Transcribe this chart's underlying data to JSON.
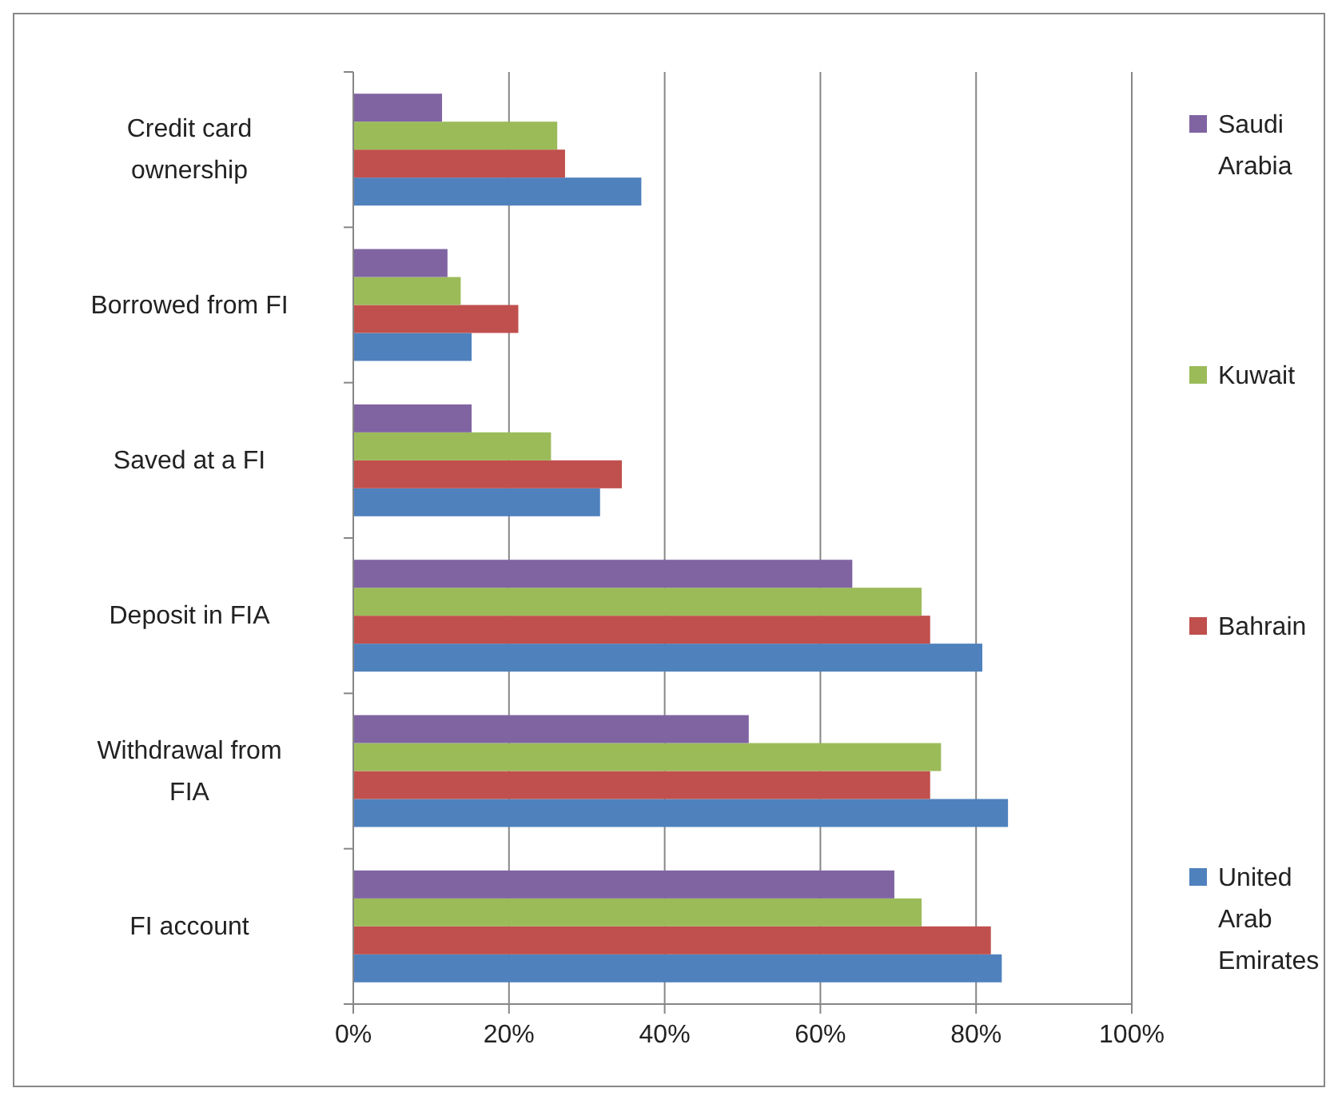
{
  "chart_data": {
    "type": "bar",
    "orientation": "horizontal",
    "categories": [
      "Credit card ownership",
      "Borrowed from FI",
      "Saved at a FI",
      "Deposit in FIA",
      "Withdrawal from FIA",
      "FI account"
    ],
    "series": [
      {
        "name": "United Arab Emirates",
        "color": "#4f81bd",
        "values": [
          37.0,
          15.2,
          31.7,
          80.8,
          84.1,
          83.3
        ]
      },
      {
        "name": "Bahrain",
        "color": "#c0504d",
        "values": [
          27.2,
          21.2,
          34.5,
          74.1,
          74.1,
          81.9
        ]
      },
      {
        "name": "Kuwait",
        "color": "#9bbb59",
        "values": [
          26.2,
          13.8,
          25.4,
          73.0,
          75.5,
          73.0
        ]
      },
      {
        "name": "Saudi Arabia",
        "color": "#8064a2",
        "values": [
          11.4,
          12.1,
          15.2,
          64.1,
          50.8,
          69.5
        ]
      }
    ],
    "xlim": [
      0,
      100
    ],
    "xticks": [
      {
        "value": 0,
        "label": "0%"
      },
      {
        "value": 20,
        "label": "20%"
      },
      {
        "value": 40,
        "label": "40%"
      },
      {
        "value": 60,
        "label": "60%"
      },
      {
        "value": 80,
        "label": "80%"
      },
      {
        "value": 100,
        "label": "100%"
      }
    ],
    "grid": "x",
    "legend": "right"
  }
}
